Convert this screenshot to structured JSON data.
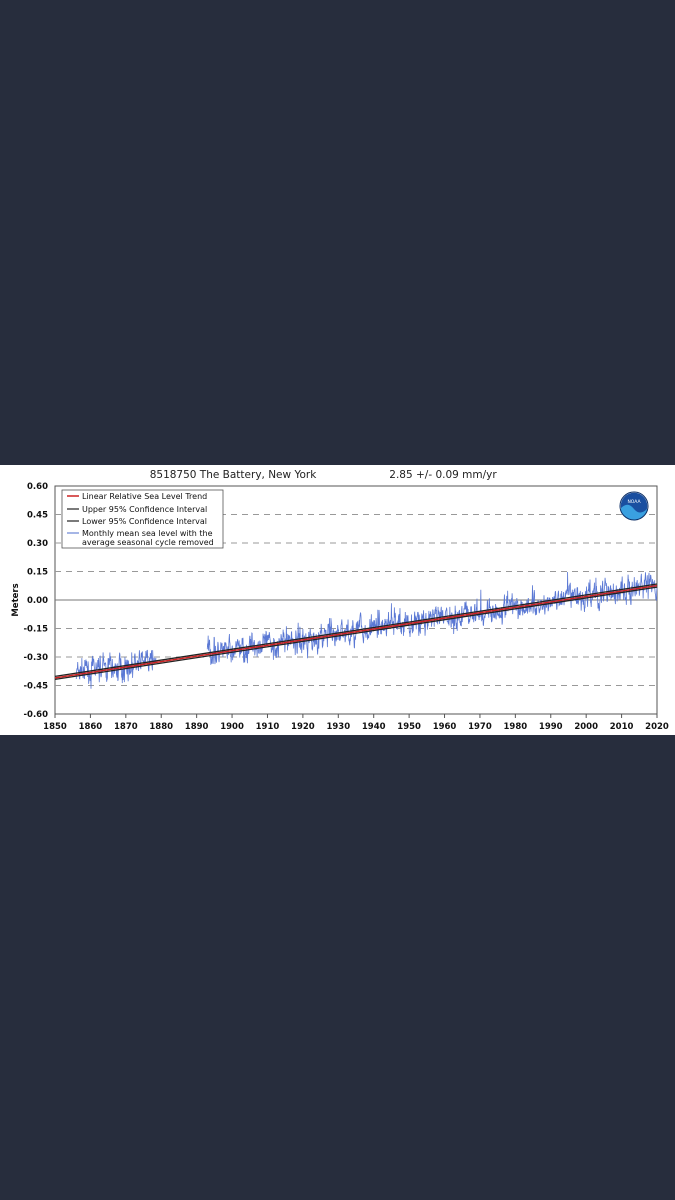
{
  "chart_data": {
    "type": "line",
    "title": "8518750 The Battery, New York",
    "trend_text": "2.85 +/-  0.09 mm/yr",
    "xlabel": "",
    "ylabel": "Meters",
    "xlim": [
      1850,
      2020
    ],
    "ylim": [
      -0.6,
      0.6
    ],
    "x_ticks": [
      "1850",
      "1860",
      "1870",
      "1880",
      "1890",
      "1900",
      "1910",
      "1920",
      "1930",
      "1940",
      "1950",
      "1960",
      "1970",
      "1980",
      "1990",
      "2000",
      "2010",
      "2020"
    ],
    "y_ticks": [
      "0.60",
      "0.45",
      "0.30",
      "0.15",
      "0.00",
      "-0.15",
      "-0.30",
      "-0.45",
      "-0.60"
    ],
    "legend_position": "top-left",
    "legend": [
      {
        "label": "Linear Relative Sea Level Trend",
        "color": "#cc2222"
      },
      {
        "label": "Upper 95% Confidence Interval",
        "color": "#222222"
      },
      {
        "label": "Lower 95% Confidence Interval",
        "color": "#222222"
      },
      {
        "label": "Monthly mean sea level with the",
        "label2": "average seasonal cycle removed",
        "color": "#6b86d6"
      }
    ],
    "trend": {
      "x": [
        1850,
        2020
      ],
      "y": [
        -0.41,
        0.076
      ]
    },
    "monthly_mean": {
      "color": "#5a78d4",
      "segments": [
        {
          "x": [
            1856,
            1878.5
          ],
          "y": [
            -0.386,
            -0.322
          ]
        },
        {
          "x": [
            1893,
            2020
          ],
          "y": [
            -0.281,
            0.078
          ]
        }
      ],
      "note": "noisy monthly series approximated around trend"
    }
  },
  "colors": {
    "background": "#272d3d",
    "panel": "#ffffff",
    "trend": "#cc2222",
    "ci": "#222222",
    "series": "#5a78d4"
  },
  "logo": {
    "text": "NOAA"
  }
}
